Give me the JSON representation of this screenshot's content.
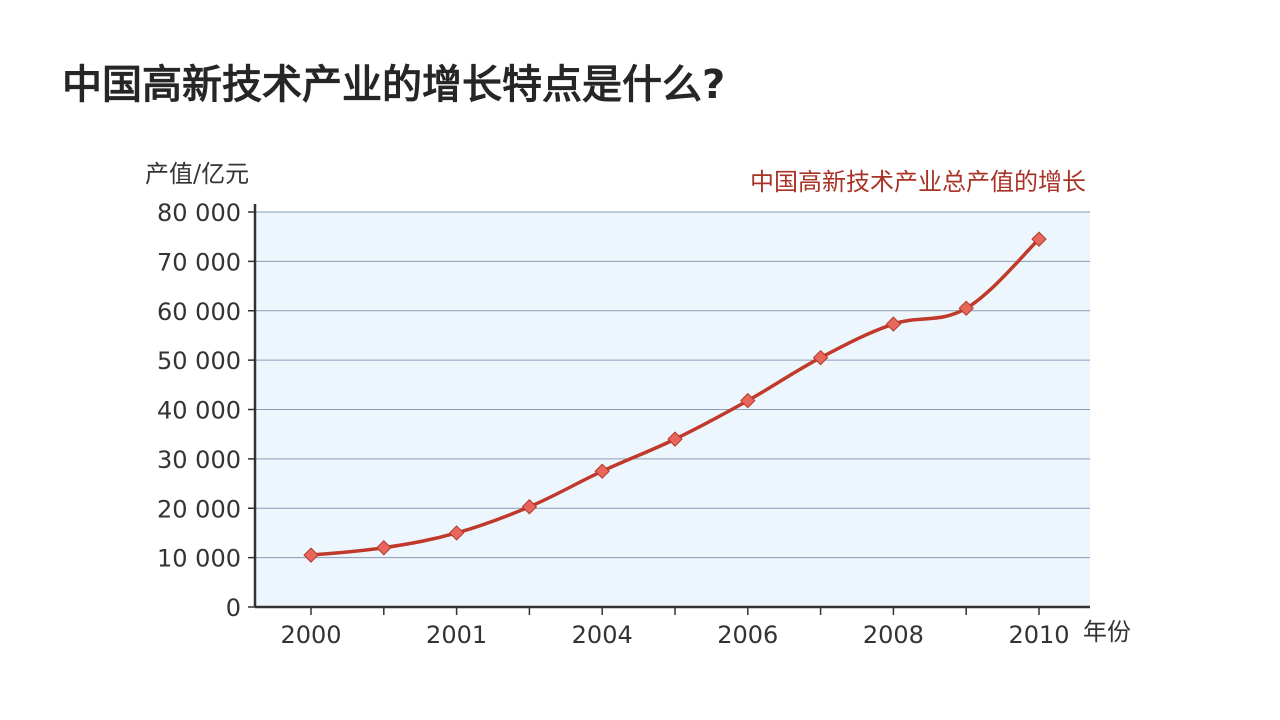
{
  "page": {
    "title": "中国高新技术产业的增长特点是什么?"
  },
  "colors": {
    "line": "#c0392b",
    "marker_fill": "#e8675a",
    "marker_stroke": "#b03a2e",
    "plot_bg": "#eef6fd",
    "grid": "#8a9bb8",
    "axis": "#333333",
    "chart_title": "#a93226",
    "text": "#333333"
  },
  "chart_data": {
    "type": "line",
    "title": "中国高新技术产业总产值的增长",
    "ylabel": "产值/亿元",
    "xlabel": "年份",
    "ylim": [
      0,
      80000
    ],
    "yticks": [
      0,
      10000,
      20000,
      30000,
      40000,
      50000,
      60000,
      70000,
      80000
    ],
    "ytick_labels": [
      "0",
      "10 000",
      "20 000",
      "30 000",
      "40 000",
      "50 000",
      "60 000",
      "70 000",
      "80 000"
    ],
    "x_positions": 11,
    "xtick_labels": [
      {
        "index": 0,
        "label": "2000"
      },
      {
        "index": 2,
        "label": "2001"
      },
      {
        "index": 4,
        "label": "2004"
      },
      {
        "index": 6,
        "label": "2006"
      },
      {
        "index": 8,
        "label": "2008"
      },
      {
        "index": 10,
        "label": "2010"
      }
    ],
    "grid": true,
    "legend": "none",
    "series": [
      {
        "values": [
          10500,
          12000,
          15000,
          20300,
          27500,
          34000,
          41800,
          50500,
          57300,
          60500,
          74500
        ]
      }
    ]
  }
}
